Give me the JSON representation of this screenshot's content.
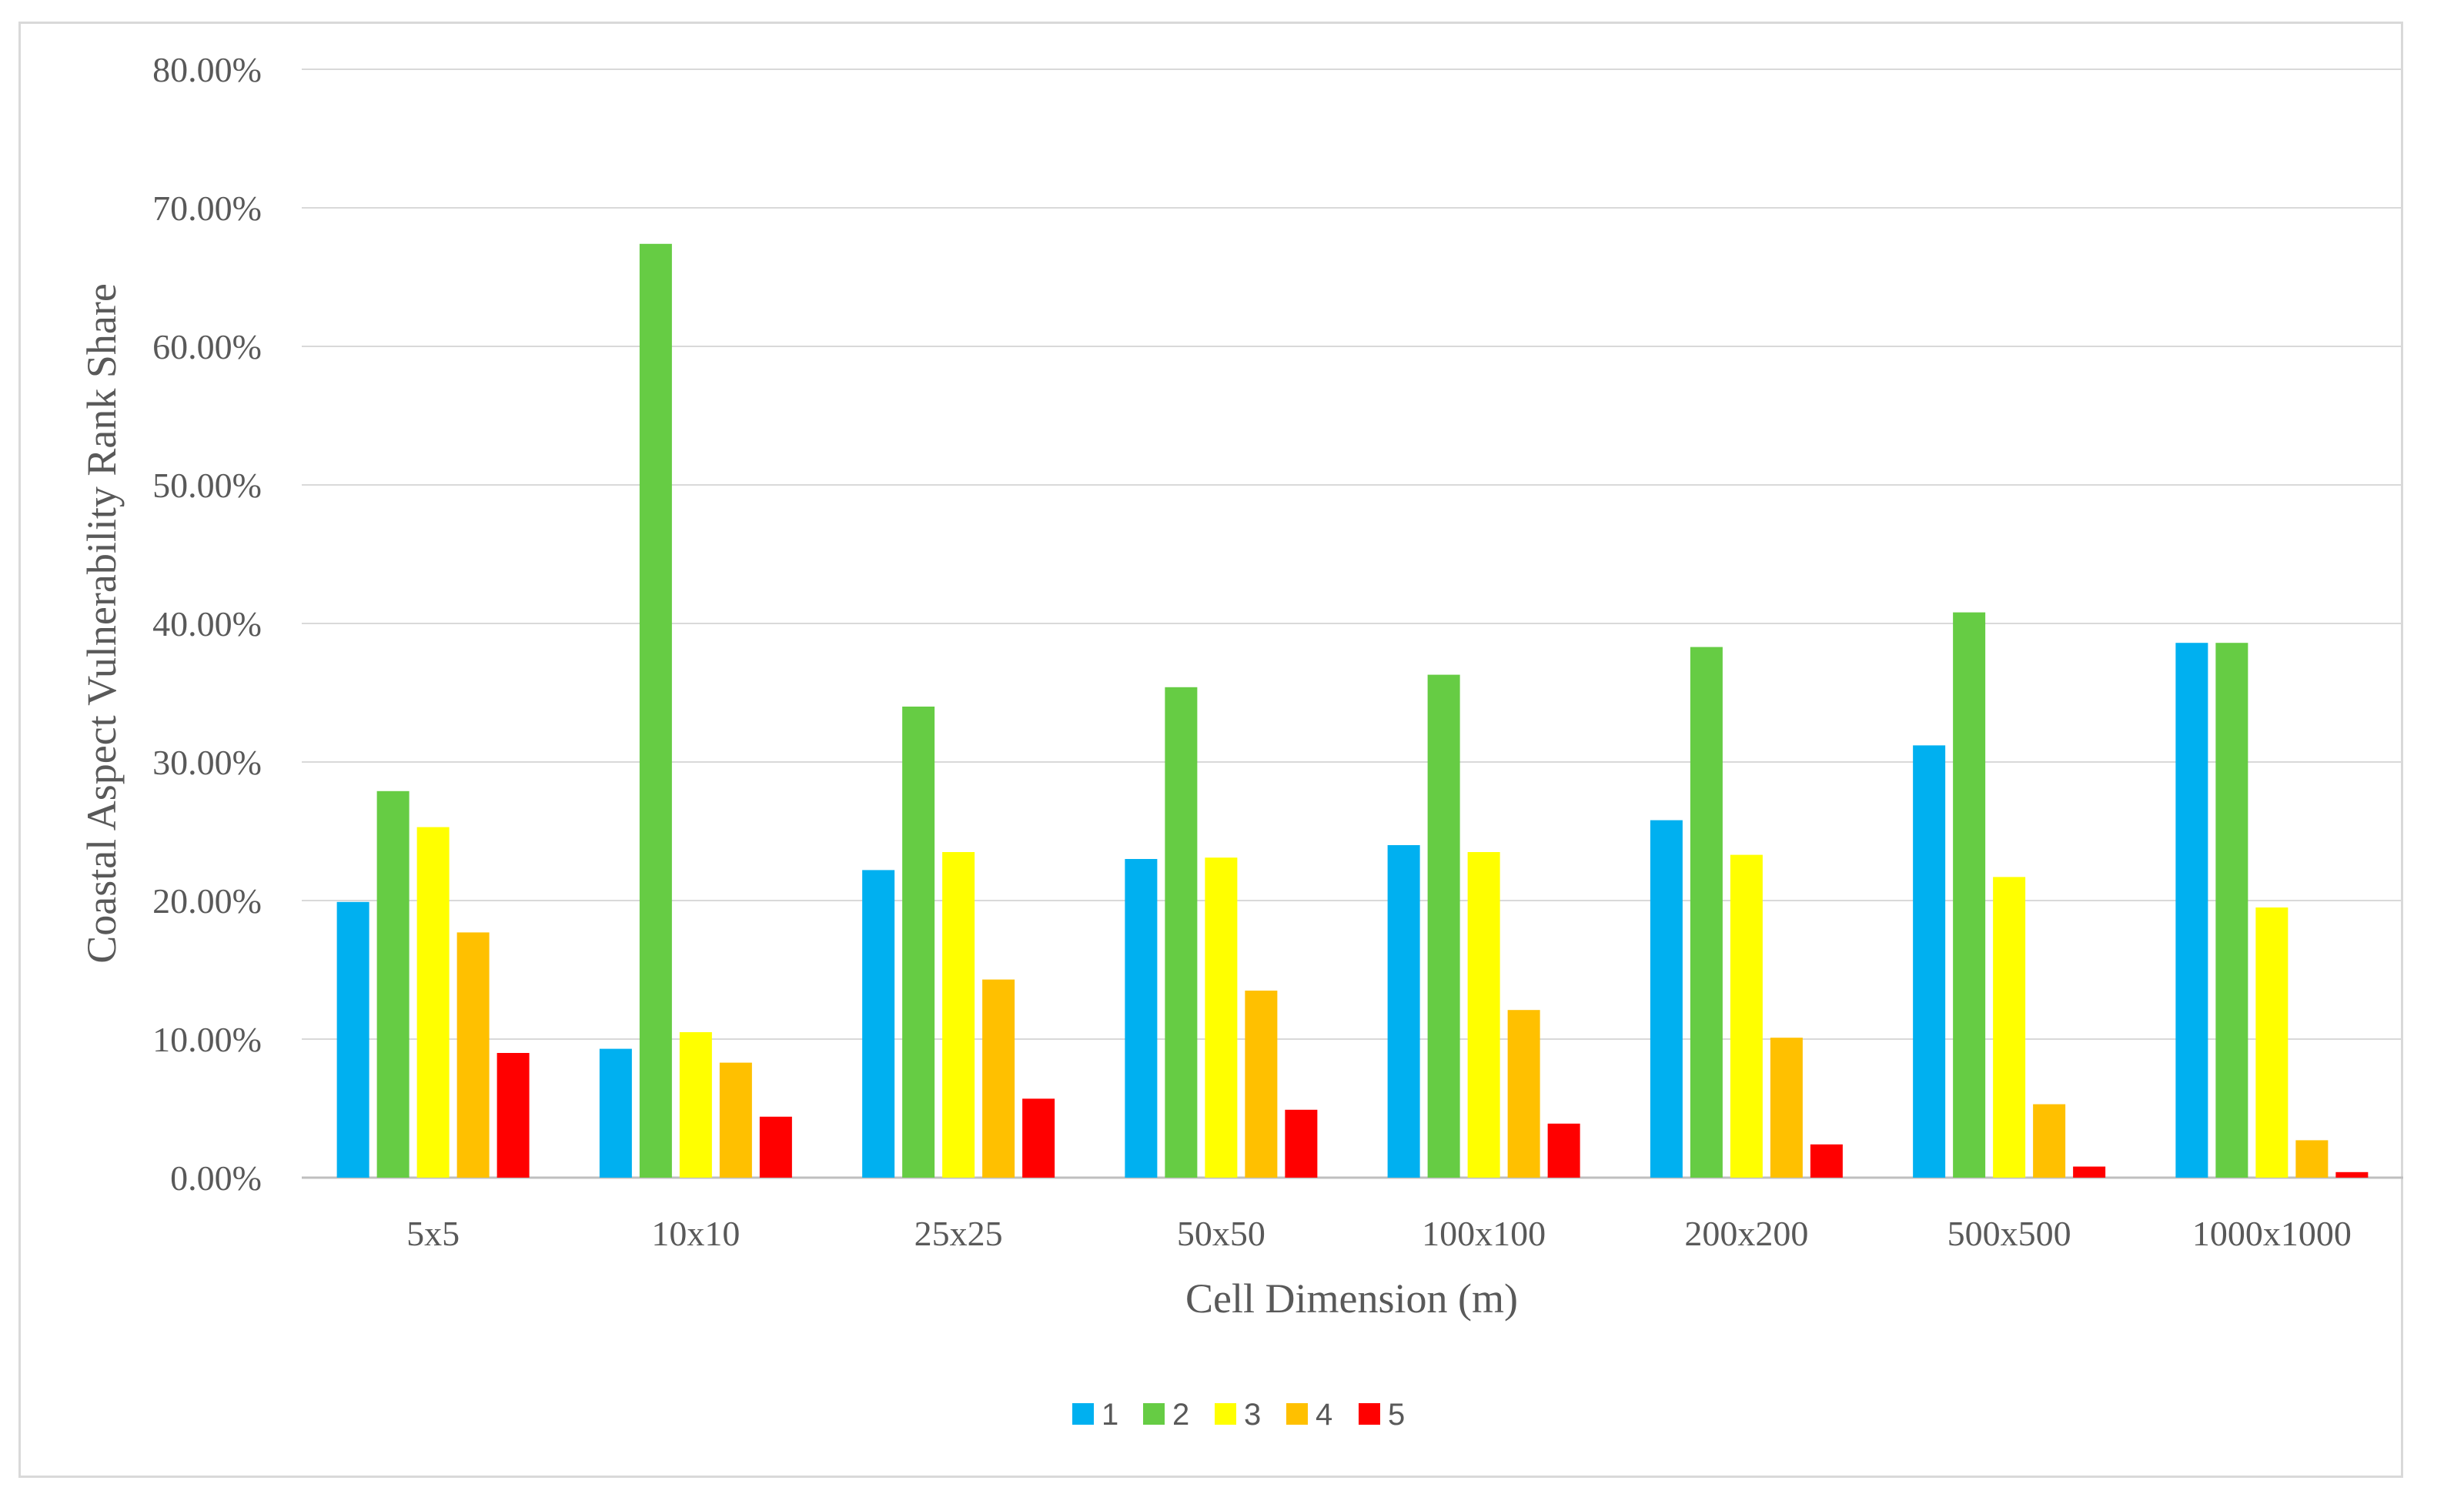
{
  "chart_data": {
    "type": "bar",
    "title": "",
    "xlabel": "Cell Dimension (m)",
    "ylabel": "Coastal Aspect Vulnerability Rank Share",
    "ylim": [
      0,
      80
    ],
    "y_ticks": [
      "0.00%",
      "10.00%",
      "20.00%",
      "30.00%",
      "40.00%",
      "50.00%",
      "60.00%",
      "70.00%",
      "80.00%"
    ],
    "grid": true,
    "legend_position": "bottom",
    "categories": [
      "5x5",
      "10x10",
      "25x25",
      "50x50",
      "100x100",
      "200x200",
      "500x500",
      "1000x1000"
    ],
    "series": [
      {
        "name": "1",
        "color": "#00b0f0",
        "values": [
          19.9,
          9.3,
          22.2,
          23.0,
          24.0,
          25.8,
          31.2,
          38.6
        ]
      },
      {
        "name": "2",
        "color": "#66cc44",
        "values": [
          27.9,
          67.4,
          34.0,
          35.4,
          36.3,
          38.3,
          40.8,
          38.6
        ]
      },
      {
        "name": "3",
        "color": "#ffff00",
        "values": [
          25.3,
          10.5,
          23.5,
          23.1,
          23.5,
          23.3,
          21.7,
          19.5
        ]
      },
      {
        "name": "4",
        "color": "#ffc000",
        "values": [
          17.7,
          8.3,
          14.3,
          13.5,
          12.1,
          10.1,
          5.3,
          2.7
        ]
      },
      {
        "name": "5",
        "color": "#ff0000",
        "values": [
          9.0,
          4.4,
          5.7,
          4.9,
          3.9,
          2.4,
          0.8,
          0.4
        ]
      }
    ]
  }
}
